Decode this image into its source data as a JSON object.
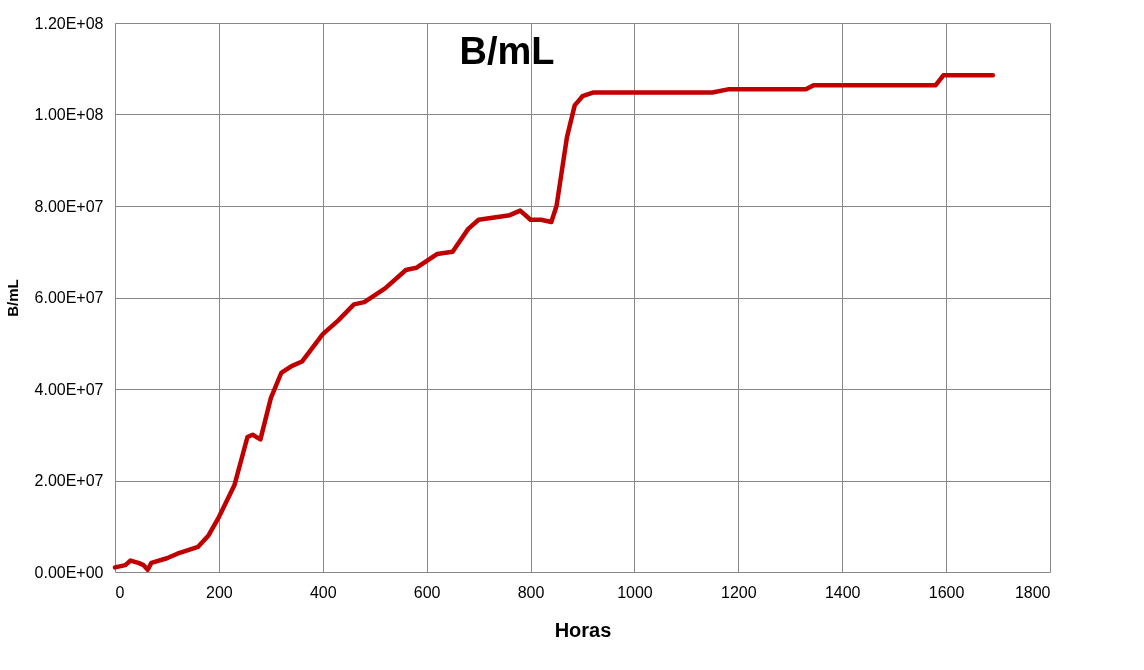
{
  "chart_data": {
    "type": "line",
    "title": "B/mL",
    "xlabel": "Horas",
    "ylabel": "B/mL",
    "x": [
      0,
      20,
      30,
      45,
      55,
      63,
      70,
      100,
      120,
      160,
      180,
      200,
      230,
      255,
      265,
      280,
      300,
      320,
      340,
      360,
      380,
      400,
      430,
      460,
      480,
      520,
      560,
      580,
      620,
      650,
      680,
      700,
      730,
      760,
      780,
      800,
      820,
      840,
      850,
      870,
      885,
      900,
      920,
      1000,
      1150,
      1180,
      1330,
      1345,
      1580,
      1595,
      1690
    ],
    "series": [
      {
        "color": "#c00000",
        "values": [
          1000000,
          1500000,
          2500000,
          2000000,
          1500000,
          500000,
          2000000,
          3000000,
          4000000,
          5500000,
          8000000,
          12000000,
          19000000,
          29500000,
          30000000,
          29000000,
          38000000,
          43500000,
          45000000,
          46000000,
          49000000,
          52000000,
          55000000,
          58500000,
          59000000,
          62000000,
          66000000,
          66500000,
          69500000,
          70000000,
          75000000,
          77000000,
          77500000,
          78000000,
          79000000,
          77000000,
          77000000,
          76500000,
          80000000,
          95000000,
          102000000,
          104000000,
          104800000,
          104800000,
          104800000,
          105500000,
          105500000,
          106400000,
          106400000,
          108600000,
          108600000
        ]
      }
    ],
    "xlim": [
      0,
      1800
    ],
    "xticks": [
      0,
      200,
      400,
      600,
      800,
      1000,
      1200,
      1400,
      1600,
      1800
    ],
    "ylim": [
      0,
      120000000
    ],
    "yticks": [
      {
        "value": 0,
        "label": "0.00E+00"
      },
      {
        "value": 20000000,
        "label": "2.00E+07"
      },
      {
        "value": 40000000,
        "label": "4.00E+07"
      },
      {
        "value": 60000000,
        "label": "6.00E+07"
      },
      {
        "value": 80000000,
        "label": "8.00E+07"
      },
      {
        "value": 100000000,
        "label": "1.00E+08"
      },
      {
        "value": 120000000,
        "label": "1.20E+08"
      }
    ],
    "grid": true,
    "marker": "none",
    "line_style": "solid"
  }
}
